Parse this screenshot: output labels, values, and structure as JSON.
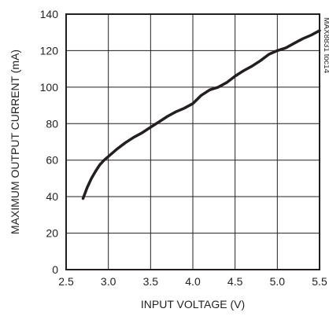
{
  "chart_data": {
    "type": "line",
    "xlabel": "INPUT VOLTAGE (V)",
    "ylabel": "MAXIMUM OUTPUT CURRENT (mA)",
    "xlim": [
      2.5,
      5.5
    ],
    "ylim": [
      0,
      140
    ],
    "x_ticks": [
      "2.5",
      "3.0",
      "3.5",
      "4.0",
      "4.5",
      "5.0",
      "5.5"
    ],
    "y_ticks": [
      "0",
      "20",
      "40",
      "60",
      "80",
      "100",
      "120",
      "140"
    ],
    "grid": true,
    "side_label": "MAX8831 toc14",
    "series": [
      {
        "x": [
          2.7,
          2.75,
          2.8,
          2.85,
          2.9,
          2.95,
          3.0,
          3.1,
          3.2,
          3.3,
          3.4,
          3.5,
          3.6,
          3.7,
          3.8,
          3.9,
          4.0,
          4.1,
          4.2,
          4.3,
          4.4,
          4.5,
          4.6,
          4.7,
          4.8,
          4.9,
          5.0,
          5.1,
          5.2,
          5.3,
          5.4,
          5.5
        ],
        "y": [
          39,
          45,
          50,
          54,
          57.5,
          60,
          62,
          66,
          69.5,
          72.5,
          75,
          78,
          81,
          84,
          86.5,
          88.5,
          91,
          95.5,
          98.5,
          100,
          102.5,
          106,
          109,
          111.5,
          114.5,
          118,
          120,
          121.5,
          124,
          126.5,
          128.5,
          131
        ]
      }
    ]
  }
}
